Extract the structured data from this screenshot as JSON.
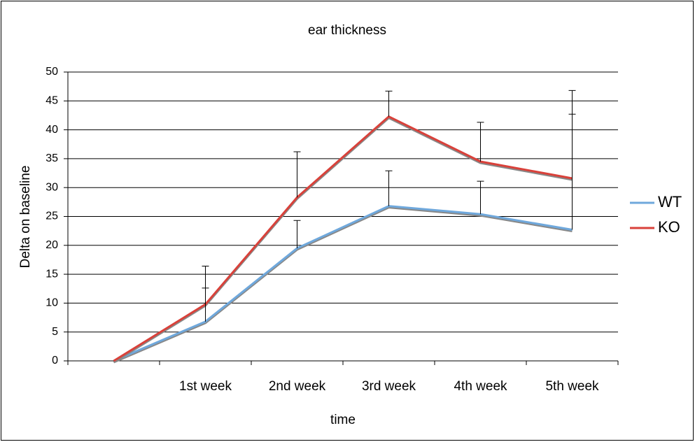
{
  "chart_data": {
    "type": "line",
    "title": "ear thickness",
    "x_label": "time",
    "y_label": "Delta on baseline",
    "categories": [
      null,
      "1st week",
      "2nd week",
      "3rd week",
      "4th week",
      "5th week"
    ],
    "series": [
      {
        "name": "WT",
        "color": "#6fa8dc",
        "values": [
          0,
          6.8,
          19.5,
          26.8,
          25.4,
          22.7
        ],
        "errors": [
          null,
          5.8,
          4.8,
          6.1,
          5.7,
          20
        ]
      },
      {
        "name": "KO",
        "color": "#d9413a",
        "values": [
          0,
          9.8,
          28.3,
          42.3,
          34.5,
          31.6
        ],
        "errors": [
          null,
          6.6,
          7.9,
          4.4,
          6.8,
          15.2
        ]
      }
    ],
    "ylim": [
      0,
      50
    ],
    "yticks": [
      0,
      5,
      10,
      15,
      20,
      25,
      30,
      35,
      40,
      45,
      50
    ],
    "grid": true,
    "legend": "right"
  }
}
